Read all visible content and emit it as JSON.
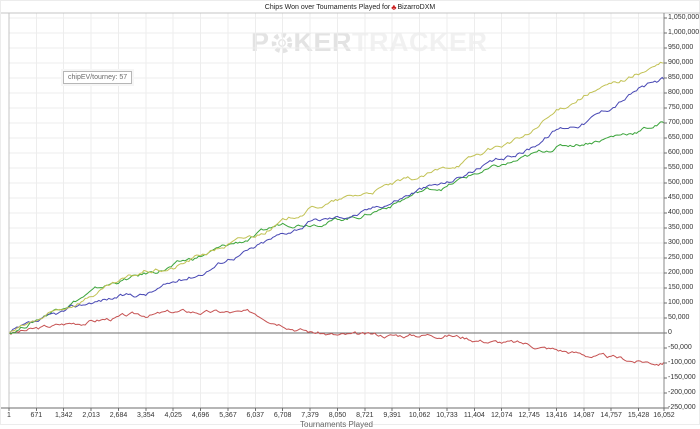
{
  "window": {
    "title_prefix": "Chips Won over Tournaments Played for",
    "player": "BizarroDXM",
    "club_icon": "♣"
  },
  "watermark": {
    "poker_p": "P",
    "poker_ker": "KER",
    "tracker": "TRACKER"
  },
  "tooltip": {
    "text": "chipEV/tourney: 57"
  },
  "colors": {
    "red_line": "#c65252",
    "green_line": "#3ba43b",
    "blue_line": "#4848b4",
    "yellow_line": "#c2c255",
    "zero_line": "#6e6e6e",
    "grid": "#ededed",
    "frame": "#c4c4c4",
    "axis": "#8a8a8a",
    "club_icon": "#cc1f1f"
  },
  "chart_data": {
    "type": "line",
    "title": "Chips Won over Tournaments Played for BizarroDXM",
    "xlabel": "Tournaments Played",
    "ylabel": "",
    "annotation": "chipEV/tourney: 57",
    "grid": true,
    "legend_position": "none",
    "xlim": [
      1,
      16052
    ],
    "ylim": [
      -250000,
      1050000
    ],
    "y_tick_step": 50000,
    "x_ticks": [
      1,
      671,
      1342,
      2013,
      2684,
      3354,
      4025,
      4696,
      5367,
      6037,
      6708,
      7379,
      8050,
      8721,
      9391,
      10062,
      10733,
      11404,
      12074,
      12745,
      13416,
      14087,
      14757,
      15428,
      16052
    ],
    "series": [
      {
        "name": "red-line",
        "color": "#c65252",
        "values": [
          0,
          12000,
          28000,
          42000,
          52000,
          60000,
          68000,
          70000,
          68000,
          62000,
          40000,
          8000,
          -8000,
          -12000,
          -8000,
          -5000,
          -2000,
          -18000,
          -30000,
          -40000,
          -55000,
          -70000,
          -85000,
          -95000,
          -97000
        ]
      },
      {
        "name": "green-line",
        "color": "#3ba43b",
        "values": [
          0,
          45000,
          95000,
          135000,
          172000,
          195000,
          223000,
          255000,
          290000,
          320000,
          365000,
          370000,
          380000,
          395000,
          430000,
          470000,
          490000,
          530000,
          555000,
          585000,
          620000,
          635000,
          655000,
          675000,
          700000
        ]
      },
      {
        "name": "blue-line",
        "color": "#4848b4",
        "values": [
          0,
          30000,
          67000,
          103000,
          122000,
          130000,
          167000,
          200000,
          250000,
          285000,
          330000,
          370000,
          385000,
          405000,
          440000,
          480000,
          500000,
          545000,
          575000,
          615000,
          680000,
          705000,
          755000,
          815000,
          845000
        ]
      },
      {
        "name": "yellow-line",
        "color": "#c2c255",
        "values": [
          0,
          40000,
          80000,
          128000,
          165000,
          205000,
          215000,
          260000,
          295000,
          325000,
          370000,
          415000,
          440000,
          465000,
          495000,
          515000,
          550000,
          590000,
          625000,
          660000,
          735000,
          795000,
          825000,
          865000,
          900000
        ]
      }
    ]
  }
}
